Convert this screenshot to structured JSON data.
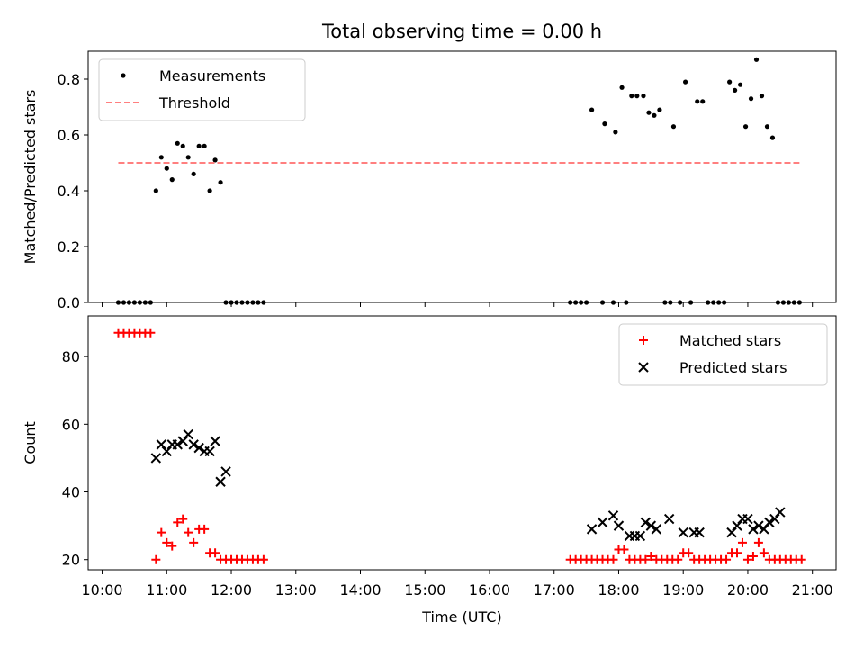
{
  "chart_data": [
    {
      "type": "scatter",
      "title": "Total observing time = 0.00 h",
      "xlabel": "",
      "ylabel": "Matched/Predicted stars",
      "xlim": [
        "09:47",
        "21:22"
      ],
      "ylim": [
        0,
        0.9
      ],
      "yticks": [
        0.0,
        0.2,
        0.4,
        0.6,
        0.8
      ],
      "ytick_labels": [
        "0.0",
        "0.2",
        "0.4",
        "0.6",
        "0.8"
      ],
      "grid": false,
      "legend_position": "upper-left",
      "legend": [
        {
          "label": "Measurements",
          "marker": "dot",
          "color": "#000000"
        },
        {
          "label": "Threshold",
          "marker": "dashed-line",
          "color": "#ff7f7f"
        }
      ],
      "series": [
        {
          "name": "Measurements",
          "color": "#000000",
          "points": [
            [
              "10:15",
              0
            ],
            [
              "10:20",
              0
            ],
            [
              "10:25",
              0
            ],
            [
              "10:30",
              0
            ],
            [
              "10:35",
              0
            ],
            [
              "10:40",
              0
            ],
            [
              "10:45",
              0
            ],
            [
              "10:50",
              0.4
            ],
            [
              "10:55",
              0.52
            ],
            [
              "11:00",
              0.48
            ],
            [
              "11:05",
              0.44
            ],
            [
              "11:10",
              0.57
            ],
            [
              "11:15",
              0.56
            ],
            [
              "11:20",
              0.52
            ],
            [
              "11:25",
              0.46
            ],
            [
              "11:30",
              0.56
            ],
            [
              "11:35",
              0.56
            ],
            [
              "11:40",
              0.4
            ],
            [
              "11:45",
              0.51
            ],
            [
              "11:50",
              0.43
            ],
            [
              "11:55",
              0
            ],
            [
              "12:00",
              0
            ],
            [
              "12:05",
              0
            ],
            [
              "12:10",
              0
            ],
            [
              "12:15",
              0
            ],
            [
              "12:20",
              0
            ],
            [
              "12:25",
              0
            ],
            [
              "12:30",
              0
            ],
            [
              "17:15",
              0
            ],
            [
              "17:20",
              0
            ],
            [
              "17:25",
              0
            ],
            [
              "17:30",
              0
            ],
            [
              "17:35",
              0.69
            ],
            [
              "17:45",
              0
            ],
            [
              "17:47",
              0.64
            ],
            [
              "17:55",
              0
            ],
            [
              "17:57",
              0.61
            ],
            [
              "18:03",
              0.77
            ],
            [
              "18:07",
              0
            ],
            [
              "18:12",
              0.74
            ],
            [
              "18:17",
              0.74
            ],
            [
              "18:23",
              0.74
            ],
            [
              "18:28",
              0.68
            ],
            [
              "18:33",
              0.67
            ],
            [
              "18:38",
              0.69
            ],
            [
              "18:43",
              0
            ],
            [
              "18:48",
              0
            ],
            [
              "18:51",
              0.63
            ],
            [
              "18:57",
              0
            ],
            [
              "19:02",
              0.79
            ],
            [
              "19:07",
              0
            ],
            [
              "19:13",
              0.72
            ],
            [
              "19:18",
              0.72
            ],
            [
              "19:23",
              0
            ],
            [
              "19:28",
              0
            ],
            [
              "19:33",
              0
            ],
            [
              "19:38",
              0
            ],
            [
              "19:43",
              0.79
            ],
            [
              "19:48",
              0.76
            ],
            [
              "19:53",
              0.78
            ],
            [
              "19:58",
              0.63
            ],
            [
              "20:03",
              0.73
            ],
            [
              "20:08",
              0.87
            ],
            [
              "20:13",
              0.74
            ],
            [
              "20:18",
              0.63
            ],
            [
              "20:23",
              0.59
            ],
            [
              "20:28",
              0
            ],
            [
              "20:33",
              0
            ],
            [
              "20:38",
              0
            ],
            [
              "20:43",
              0
            ],
            [
              "20:48",
              0
            ]
          ]
        },
        {
          "name": "Threshold",
          "color": "#ff7f7f",
          "points": [
            [
              "10:15",
              0.5
            ],
            [
              "20:48",
              0.5
            ]
          ]
        }
      ]
    },
    {
      "type": "scatter",
      "title": "",
      "xlabel": "Time (UTC)",
      "ylabel": "Count",
      "xlim": [
        "09:47",
        "21:22"
      ],
      "ylim": [
        17,
        92
      ],
      "yticks": [
        20,
        40,
        60,
        80
      ],
      "ytick_labels": [
        "20",
        "40",
        "60",
        "80"
      ],
      "xticks": [
        "10:00",
        "11:00",
        "12:00",
        "13:00",
        "14:00",
        "15:00",
        "16:00",
        "17:00",
        "18:00",
        "19:00",
        "20:00",
        "21:00"
      ],
      "xtick_labels": [
        "10:00",
        "11:00",
        "12:00",
        "13:00",
        "14:00",
        "15:00",
        "16:00",
        "17:00",
        "18:00",
        "19:00",
        "20:00",
        "21:00"
      ],
      "grid": false,
      "legend_position": "upper-right",
      "legend": [
        {
          "label": "Matched stars",
          "marker": "plus",
          "color": "#ff0000"
        },
        {
          "label": "Predicted stars",
          "marker": "x",
          "color": "#000000"
        }
      ],
      "series": [
        {
          "name": "Matched stars",
          "color": "#ff0000",
          "points": [
            [
              "10:15",
              87
            ],
            [
              "10:20",
              87
            ],
            [
              "10:25",
              87
            ],
            [
              "10:30",
              87
            ],
            [
              "10:35",
              87
            ],
            [
              "10:40",
              87
            ],
            [
              "10:45",
              87
            ],
            [
              "10:50",
              20
            ],
            [
              "10:55",
              28
            ],
            [
              "11:00",
              25
            ],
            [
              "11:05",
              24
            ],
            [
              "11:10",
              31
            ],
            [
              "11:15",
              32
            ],
            [
              "11:20",
              28
            ],
            [
              "11:25",
              25
            ],
            [
              "11:30",
              29
            ],
            [
              "11:35",
              29
            ],
            [
              "11:40",
              22
            ],
            [
              "11:45",
              22
            ],
            [
              "11:50",
              20
            ],
            [
              "11:55",
              20
            ],
            [
              "12:00",
              20
            ],
            [
              "12:05",
              20
            ],
            [
              "12:10",
              20
            ],
            [
              "12:15",
              20
            ],
            [
              "12:20",
              20
            ],
            [
              "12:25",
              20
            ],
            [
              "12:30",
              20
            ],
            [
              "17:15",
              20
            ],
            [
              "17:20",
              20
            ],
            [
              "17:25",
              20
            ],
            [
              "17:30",
              20
            ],
            [
              "17:35",
              20
            ],
            [
              "17:40",
              20
            ],
            [
              "17:45",
              20
            ],
            [
              "17:50",
              20
            ],
            [
              "17:55",
              20
            ],
            [
              "18:00",
              23
            ],
            [
              "18:05",
              23
            ],
            [
              "18:10",
              20
            ],
            [
              "18:15",
              20
            ],
            [
              "18:20",
              20
            ],
            [
              "18:25",
              20
            ],
            [
              "18:30",
              21
            ],
            [
              "18:35",
              20
            ],
            [
              "18:40",
              20
            ],
            [
              "18:45",
              20
            ],
            [
              "18:50",
              20
            ],
            [
              "18:55",
              20
            ],
            [
              "19:00",
              22
            ],
            [
              "19:05",
              22
            ],
            [
              "19:10",
              20
            ],
            [
              "19:15",
              20
            ],
            [
              "19:20",
              20
            ],
            [
              "19:25",
              20
            ],
            [
              "19:30",
              20
            ],
            [
              "19:35",
              20
            ],
            [
              "19:40",
              20
            ],
            [
              "19:45",
              22
            ],
            [
              "19:50",
              22
            ],
            [
              "19:55",
              25
            ],
            [
              "20:00",
              20
            ],
            [
              "20:05",
              21
            ],
            [
              "20:10",
              25
            ],
            [
              "20:15",
              22
            ],
            [
              "20:20",
              20
            ],
            [
              "20:25",
              20
            ],
            [
              "20:30",
              20
            ],
            [
              "20:35",
              20
            ],
            [
              "20:40",
              20
            ],
            [
              "20:45",
              20
            ],
            [
              "20:50",
              20
            ]
          ]
        },
        {
          "name": "Predicted stars",
          "color": "#000000",
          "points": [
            [
              "10:50",
              50
            ],
            [
              "10:55",
              54
            ],
            [
              "11:00",
              52
            ],
            [
              "11:05",
              54
            ],
            [
              "11:10",
              54
            ],
            [
              "11:15",
              55
            ],
            [
              "11:20",
              57
            ],
            [
              "11:25",
              54
            ],
            [
              "11:30",
              53
            ],
            [
              "11:35",
              52
            ],
            [
              "11:40",
              52
            ],
            [
              "11:45",
              55
            ],
            [
              "11:50",
              43
            ],
            [
              "11:55",
              46
            ],
            [
              "17:35",
              29
            ],
            [
              "17:45",
              31
            ],
            [
              "17:55",
              33
            ],
            [
              "18:00",
              30
            ],
            [
              "18:10",
              27
            ],
            [
              "18:15",
              27
            ],
            [
              "18:20",
              27
            ],
            [
              "18:25",
              31
            ],
            [
              "18:30",
              30
            ],
            [
              "18:35",
              29
            ],
            [
              "18:47",
              32
            ],
            [
              "19:00",
              28
            ],
            [
              "19:10",
              28
            ],
            [
              "19:15",
              28
            ],
            [
              "19:45",
              28
            ],
            [
              "19:50",
              30
            ],
            [
              "19:55",
              32
            ],
            [
              "20:00",
              32
            ],
            [
              "20:05",
              29
            ],
            [
              "20:10",
              30
            ],
            [
              "20:15",
              29
            ],
            [
              "20:20",
              31
            ],
            [
              "20:25",
              32
            ],
            [
              "20:30",
              34
            ]
          ]
        }
      ]
    }
  ]
}
